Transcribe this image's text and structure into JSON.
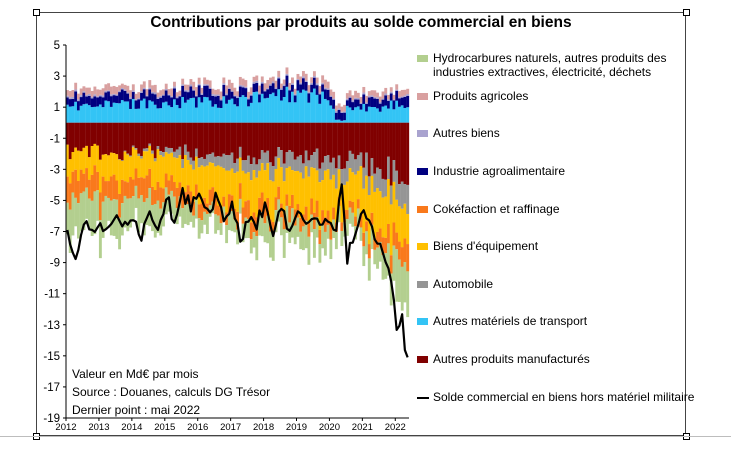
{
  "chart_data": {
    "type": "bar",
    "stacked": true,
    "title": "Contributions par produits au solde commercial en biens",
    "ylim": [
      -19,
      5
    ],
    "yticks": [
      5,
      3,
      1,
      -1,
      -3,
      -5,
      -7,
      -9,
      -11,
      -13,
      -15,
      -17,
      -19
    ],
    "x_tick_labels": [
      "2012",
      "2013",
      "2014",
      "2015",
      "2016",
      "2017",
      "2018",
      "2019",
      "2020",
      "2021",
      "2022"
    ],
    "x_range": [
      "2012-01",
      "2022-05"
    ],
    "frequency": "monthly",
    "legend_position": "right",
    "series": [
      {
        "name": "Hydrocarbures naturels, autres produits des industries extractives, électricité, déchets",
        "color": "#b3cf8f",
        "kind": "bar",
        "values": {
          "2012": -2.2,
          "2013": -2.0,
          "2014": -2.0,
          "2015": -1.1,
          "2016": -1.0,
          "2017": -1.2,
          "2018": -1.5,
          "2019": -1.5,
          "2020": -0.9,
          "2021": -1.3,
          "2022-01": -2.6,
          "2022-05": -3.2
        }
      },
      {
        "name": "Produits agricoles",
        "color": "#d9a0a0",
        "kind": "bar",
        "values": {
          "2012": 0.4,
          "2013": 0.4,
          "2014": 0.4,
          "2015": 0.4,
          "2016": 0.4,
          "2017": 0.4,
          "2018": 0.4,
          "2019": 0.4,
          "2020": 0.4,
          "2021": 0.4,
          "2022-05": 0.4
        }
      },
      {
        "name": "Autres biens",
        "color": "#a9a3cf",
        "kind": "bar",
        "values": {
          "2012": 0.1,
          "2013": 0.1,
          "2014": 0.1,
          "2015": 0.1,
          "2016": 0.1,
          "2017": 0.1,
          "2018": 0.1,
          "2019": 0.1,
          "2020": 0.1,
          "2021": 0.1,
          "2022-05": 0.1
        }
      },
      {
        "name": "Industrie agroalimentaire",
        "color": "#000080",
        "kind": "bar",
        "values": {
          "2012": 0.6,
          "2013": 0.6,
          "2014": 0.6,
          "2015": 0.6,
          "2016": 0.6,
          "2017": 0.6,
          "2018": 0.6,
          "2019": 0.6,
          "2020": 0.5,
          "2021": 0.5,
          "2022-05": 0.6
        }
      },
      {
        "name": "Cokéfaction et raffinage",
        "color": "#f9791c",
        "kind": "bar",
        "values": {
          "2012": -1.5,
          "2013": -1.3,
          "2014": -1.2,
          "2015": -1.0,
          "2016": -0.9,
          "2017": -1.0,
          "2018": -1.0,
          "2019": -1.0,
          "2020": -0.6,
          "2021": -0.9,
          "2022-05": -1.6
        }
      },
      {
        "name": "Biens d'équipement",
        "color": "#ffc000",
        "kind": "bar",
        "values": {
          "2012": -1.6,
          "2013": -1.7,
          "2014": -1.7,
          "2015": -2.0,
          "2016": -2.1,
          "2017": -2.2,
          "2018": -2.2,
          "2019": -2.4,
          "2020": -2.2,
          "2021": -2.6,
          "2022-05": -2.7
        }
      },
      {
        "name": "Automobile",
        "color": "#959595",
        "kind": "bar",
        "values": {
          "2012": 0.0,
          "2013": 0.0,
          "2014": -0.2,
          "2015": -0.5,
          "2016": -0.7,
          "2017": -0.9,
          "2018": -1.0,
          "2019": -1.1,
          "2020": -1.1,
          "2021": -1.4,
          "2022-05": -1.5
        }
      },
      {
        "name": "Autres matériels de transport",
        "color": "#33c4f5",
        "kind": "bar",
        "values": {
          "2012": 1.1,
          "2013": 1.2,
          "2014": 1.2,
          "2015": 1.3,
          "2016": 1.3,
          "2017": 1.5,
          "2018": 1.8,
          "2019": 1.8,
          "2020": 0.9,
          "2021": 1.0,
          "2022-05": 1.3
        }
      },
      {
        "name": "Autres produits manufacturés",
        "color": "#800000",
        "kind": "bar",
        "values": {
          "2012": -1.9,
          "2013": -1.9,
          "2014": -1.9,
          "2015": -1.9,
          "2016": -2.0,
          "2017": -2.1,
          "2018": -2.2,
          "2019": -2.3,
          "2020": -2.4,
          "2021": -2.8,
          "2022-05": -3.6
        }
      },
      {
        "name": "Solde commercial en biens hors matériel militaire",
        "color": "#000000",
        "kind": "line",
        "points": [
          {
            "x": "2012-01",
            "y": -6.9
          },
          {
            "x": "2012-04",
            "y": -8.4
          },
          {
            "x": "2012-07",
            "y": -6.4
          },
          {
            "x": "2012-10",
            "y": -6.8
          },
          {
            "x": "2013-01",
            "y": -6.2
          },
          {
            "x": "2013-04",
            "y": -7.2
          },
          {
            "x": "2013-07",
            "y": -5.8
          },
          {
            "x": "2013-10",
            "y": -6.4
          },
          {
            "x": "2014-01",
            "y": -6.0
          },
          {
            "x": "2014-04",
            "y": -7.4
          },
          {
            "x": "2014-07",
            "y": -5.9
          },
          {
            "x": "2014-10",
            "y": -6.5
          },
          {
            "x": "2015-01",
            "y": -4.9
          },
          {
            "x": "2015-04",
            "y": -6.1
          },
          {
            "x": "2015-07",
            "y": -4.6
          },
          {
            "x": "2015-10",
            "y": -5.3
          },
          {
            "x": "2016-01",
            "y": -4.8
          },
          {
            "x": "2016-04",
            "y": -5.6
          },
          {
            "x": "2016-07",
            "y": -5.0
          },
          {
            "x": "2016-10",
            "y": -6.2
          },
          {
            "x": "2017-01",
            "y": -5.3
          },
          {
            "x": "2017-04",
            "y": -7.6
          },
          {
            "x": "2017-07",
            "y": -6.0
          },
          {
            "x": "2017-10",
            "y": -6.5
          },
          {
            "x": "2018-01",
            "y": -5.2
          },
          {
            "x": "2018-04",
            "y": -7.0
          },
          {
            "x": "2018-07",
            "y": -5.4
          },
          {
            "x": "2018-10",
            "y": -6.8
          },
          {
            "x": "2019-01",
            "y": -5.8
          },
          {
            "x": "2019-04",
            "y": -6.9
          },
          {
            "x": "2019-07",
            "y": -5.9
          },
          {
            "x": "2019-10",
            "y": -6.6
          },
          {
            "x": "2020-01",
            "y": -6.2
          },
          {
            "x": "2020-03",
            "y": -7.1
          },
          {
            "x": "2020-05",
            "y": -3.8
          },
          {
            "x": "2020-07",
            "y": -8.7
          },
          {
            "x": "2020-10",
            "y": -7.3
          },
          {
            "x": "2021-01",
            "y": -5.3
          },
          {
            "x": "2021-04",
            "y": -7.0
          },
          {
            "x": "2021-07",
            "y": -7.6
          },
          {
            "x": "2021-10",
            "y": -9.3
          },
          {
            "x": "2022-01",
            "y": -13.2
          },
          {
            "x": "2022-03",
            "y": -12.0
          },
          {
            "x": "2022-04",
            "y": -14.6
          },
          {
            "x": "2022-05",
            "y": -14.9
          }
        ]
      }
    ],
    "notes": [
      "Valeur en Md€ par mois",
      "Source : Douanes, calculs DG Trésor",
      "Dernier point : mai 2022"
    ]
  }
}
